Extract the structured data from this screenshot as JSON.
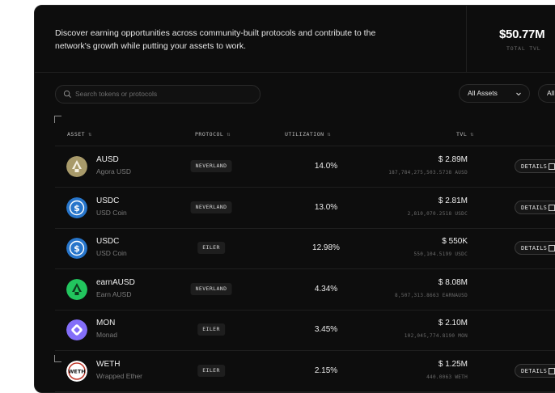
{
  "header": {
    "description": "Discover earning opportunities across community-built protocols and contribute to the network's growth while putting your assets to work.",
    "tvl_value": "$50.77M",
    "tvl_label": "TOTAL TVL"
  },
  "search": {
    "placeholder": "Search tokens or protocols",
    "icon": "search-icon"
  },
  "filters": [
    {
      "label": "All Assets"
    },
    {
      "label": "All"
    }
  ],
  "table": {
    "columns": [
      "ASSET",
      "PROTOCOL",
      "UTILIZATION",
      "TVL"
    ],
    "sort_glyph": "⇅",
    "details_label": "DETAILS",
    "rows": [
      {
        "symbol": "AUSD",
        "name": "Agora USD",
        "protocol": "NEVERLAND",
        "utilization": "14.0%",
        "tvl": "$ 2.89M",
        "tvl_detail": "187,784,275,503.5738 AUSD",
        "icon": "agora-logo-icon",
        "color": "#a89a6a",
        "details": true
      },
      {
        "symbol": "USDC",
        "name": "USD Coin",
        "protocol": "NEVERLAND",
        "utilization": "13.0%",
        "tvl": "$ 2.81M",
        "tvl_detail": "2,810,070.2518 USDC",
        "icon": "usdc-logo-icon",
        "color": "#2775ca",
        "details": true
      },
      {
        "symbol": "USDC",
        "name": "USD Coin",
        "protocol": "EILER",
        "utilization": "12.98%",
        "tvl": "$ 550K",
        "tvl_detail": "550,104.5199 USDC",
        "icon": "usdc-logo-icon",
        "color": "#2775ca",
        "details": true
      },
      {
        "symbol": "earnAUSD",
        "name": "Earn AUSD",
        "protocol": "NEVERLAND",
        "utilization": "4.34%",
        "tvl": "$ 8.08M",
        "tvl_detail": "8,507,313.8663 EARNAUSD",
        "icon": "earn-ausd-logo-icon",
        "color": "#22c55e",
        "details": false
      },
      {
        "symbol": "MON",
        "name": "Monad",
        "protocol": "EILER",
        "utilization": "3.45%",
        "tvl": "$ 2.10M",
        "tvl_detail": "102,045,774.8190 MON",
        "icon": "monad-logo-icon",
        "color": "#836ef9",
        "details": false
      },
      {
        "symbol": "WETH",
        "name": "Wrapped Ether",
        "protocol": "EILER",
        "utilization": "2.15%",
        "tvl": "$ 1.25M",
        "tvl_detail": "440.0063 WETH",
        "icon": "weth-logo-icon",
        "color": "#ffffff",
        "details": true
      }
    ]
  }
}
